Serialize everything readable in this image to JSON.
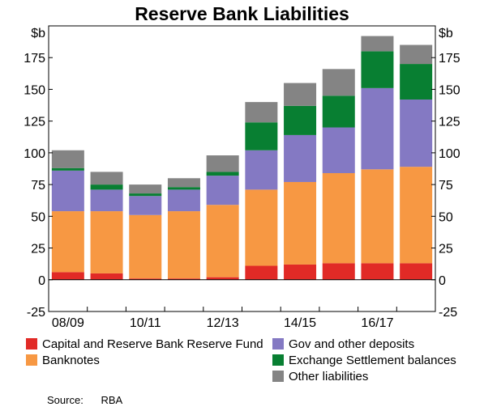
{
  "chart_data": {
    "type": "bar",
    "stacked": true,
    "title": "Reserve Bank Liabilities",
    "y_unit": "$b",
    "ylim": [
      -25,
      200
    ],
    "yticks": [
      -25,
      0,
      25,
      50,
      75,
      100,
      125,
      150,
      175
    ],
    "grid": false,
    "legend_position": "bottom",
    "categories": [
      "2008/09",
      "2009/10",
      "2010/11",
      "2011/12",
      "2012/13",
      "2013/14",
      "2014/15",
      "2015/16",
      "2016/17",
      "2017/18"
    ],
    "x_tick_labels": [
      {
        "category_index": 0,
        "label": "08/09"
      },
      {
        "category_index": 2,
        "label": "10/11"
      },
      {
        "category_index": 4,
        "label": "12/13"
      },
      {
        "category_index": 6,
        "label": "14/15"
      },
      {
        "category_index": 8,
        "label": "16/17"
      }
    ],
    "series": [
      {
        "name": "Capital and Reserve Bank Reserve Fund",
        "color": "#e12a26",
        "values": [
          6,
          5,
          1,
          1,
          2,
          11,
          12,
          13,
          13,
          13
        ]
      },
      {
        "name": "Banknotes",
        "color": "#f79843",
        "values": [
          48,
          49,
          50,
          53,
          57,
          60,
          65,
          71,
          74,
          76
        ]
      },
      {
        "name": "Gov and other deposits",
        "color": "#8479c3",
        "values": [
          32,
          17,
          15,
          17,
          23,
          31,
          37,
          36,
          64,
          53
        ]
      },
      {
        "name": "Exchange Settlement balances",
        "color": "#087f32",
        "values": [
          2,
          4,
          2,
          2,
          3,
          22,
          23,
          25,
          29,
          28
        ]
      },
      {
        "name": "Other liabilities",
        "color": "#848484",
        "values": [
          14,
          10,
          7,
          7,
          13,
          16,
          18,
          21,
          12,
          15
        ]
      }
    ]
  },
  "source_label": "Source:",
  "source_value": "RBA"
}
